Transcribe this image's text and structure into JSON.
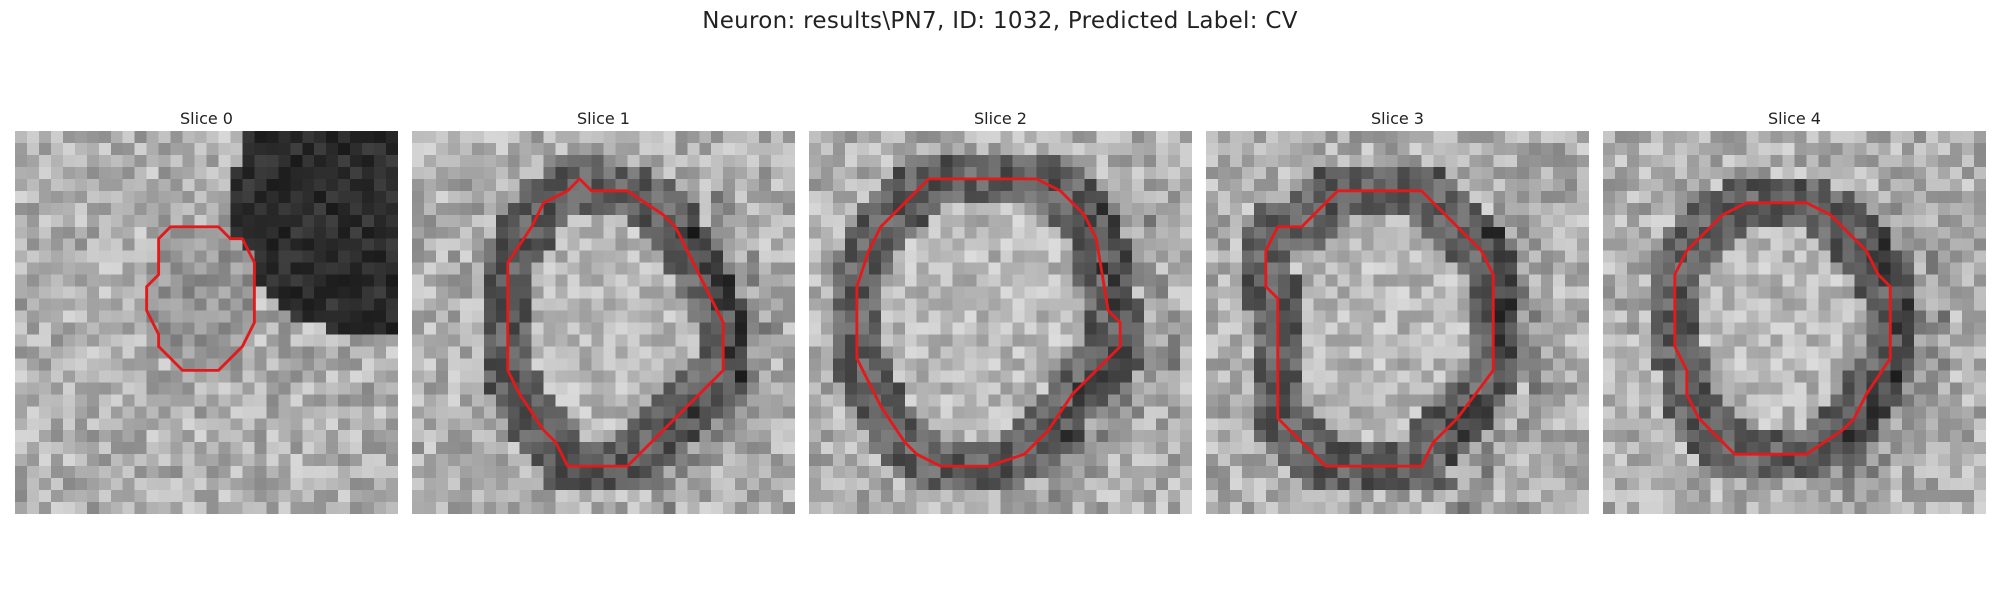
{
  "figure": {
    "title": "Neuron: results\\PN7, ID: 1032, Predicted Label: CV",
    "contour_color": "#e31a1c"
  },
  "slices": [
    {
      "label": "Slice 0",
      "contour_xy": [
        [
          13,
          8
        ],
        [
          17,
          8
        ],
        [
          18,
          9
        ],
        [
          19,
          9
        ],
        [
          20,
          11
        ],
        [
          20,
          16
        ],
        [
          19,
          18
        ],
        [
          17,
          20
        ],
        [
          14,
          20
        ],
        [
          13,
          19
        ],
        [
          12,
          18
        ],
        [
          12,
          17
        ],
        [
          11,
          15
        ],
        [
          11,
          13
        ],
        [
          12,
          12
        ],
        [
          12,
          9
        ]
      ]
    },
    {
      "label": "Slice 1",
      "contour_xy": [
        [
          11,
          6
        ],
        [
          13,
          5
        ],
        [
          14,
          4
        ],
        [
          15,
          5
        ],
        [
          18,
          5
        ],
        [
          21,
          7
        ],
        [
          22,
          8
        ],
        [
          23,
          10
        ],
        [
          25,
          14
        ],
        [
          26,
          16
        ],
        [
          26,
          20
        ],
        [
          24,
          22
        ],
        [
          18,
          28
        ],
        [
          13,
          28
        ],
        [
          12,
          26
        ],
        [
          11,
          25
        ],
        [
          9,
          22
        ],
        [
          8,
          20
        ],
        [
          8,
          11
        ],
        [
          10,
          8
        ]
      ]
    },
    {
      "label": "Slice 2",
      "contour_xy": [
        [
          10,
          4
        ],
        [
          19,
          4
        ],
        [
          21,
          5
        ],
        [
          23,
          7
        ],
        [
          24,
          9
        ],
        [
          25,
          15
        ],
        [
          26,
          16
        ],
        [
          26,
          18
        ],
        [
          24,
          20
        ],
        [
          22,
          22
        ],
        [
          20,
          25
        ],
        [
          18,
          27
        ],
        [
          15,
          28
        ],
        [
          11,
          28
        ],
        [
          9,
          27
        ],
        [
          8,
          26
        ],
        [
          6,
          23
        ],
        [
          5,
          21
        ],
        [
          4,
          19
        ],
        [
          4,
          13
        ],
        [
          5,
          10
        ],
        [
          6,
          8
        ],
        [
          8,
          6
        ]
      ]
    },
    {
      "label": "Slice 3",
      "contour_xy": [
        [
          11,
          5
        ],
        [
          18,
          5
        ],
        [
          21,
          8
        ],
        [
          23,
          10
        ],
        [
          24,
          12
        ],
        [
          24,
          20
        ],
        [
          21,
          24
        ],
        [
          19,
          26
        ],
        [
          18,
          28
        ],
        [
          10,
          28
        ],
        [
          6,
          24
        ],
        [
          6,
          14
        ],
        [
          5,
          13
        ],
        [
          5,
          10
        ],
        [
          6,
          8
        ],
        [
          8,
          8
        ],
        [
          10,
          6
        ]
      ]
    },
    {
      "label": "Slice 4",
      "contour_xy": [
        [
          12,
          6
        ],
        [
          14,
          6
        ],
        [
          17,
          6
        ],
        [
          19,
          7
        ],
        [
          22,
          10
        ],
        [
          23,
          12
        ],
        [
          24,
          13
        ],
        [
          24,
          19
        ],
        [
          22,
          22
        ],
        [
          21,
          24
        ],
        [
          20,
          25
        ],
        [
          17,
          27
        ],
        [
          11,
          27
        ],
        [
          10,
          26
        ],
        [
          8,
          24
        ],
        [
          7,
          22
        ],
        [
          7,
          20
        ],
        [
          6,
          18
        ],
        [
          6,
          12
        ],
        [
          7,
          10
        ],
        [
          9,
          8
        ],
        [
          10,
          7
        ]
      ]
    }
  ]
}
